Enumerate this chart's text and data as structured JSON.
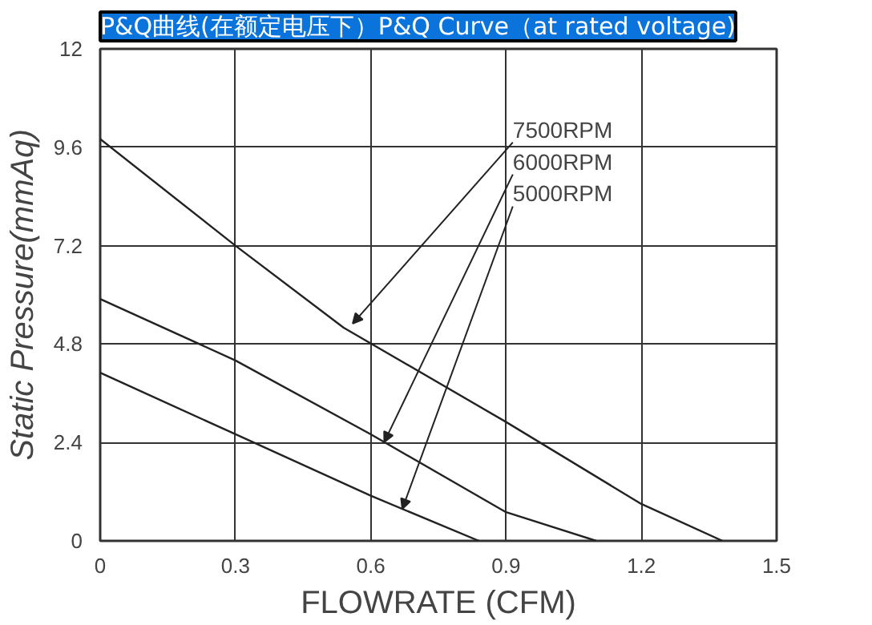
{
  "chart_data": {
    "type": "line",
    "title": "P&Q曲线(在额定电压下）P&Q Curve（at rated voltage)",
    "xlabel": "FLOWRATE (CFM)",
    "ylabel": "Static Pressure(mmAq)",
    "xlim": [
      0,
      1.5
    ],
    "xticks": [
      0,
      0.3,
      0.6,
      0.9,
      1.2,
      1.5
    ],
    "ylim": [
      0,
      12
    ],
    "yticks": [
      0,
      2.4,
      4.8,
      7.2,
      9.6,
      12
    ],
    "grid": true,
    "marker": "none",
    "line_style": "solid",
    "series": [
      {
        "color": "#222222",
        "x": [
          0,
          0.3,
          0.54,
          0.9,
          1.2,
          1.38
        ],
        "values": [
          9.8,
          7.2,
          5.2,
          2.9,
          0.9,
          0
        ]
      },
      {
        "color": "#222222",
        "x": [
          0,
          0.3,
          0.6,
          0.9,
          1.1
        ],
        "values": [
          5.9,
          4.4,
          2.6,
          0.7,
          0
        ]
      },
      {
        "color": "#222222",
        "x": [
          0,
          0.3,
          0.6,
          0.84
        ],
        "values": [
          4.1,
          2.6,
          1.1,
          0
        ]
      }
    ],
    "annotations": [
      {
        "text": "7500RPM",
        "x": 0.56,
        "y": 5.3
      },
      {
        "text": "6000RPM",
        "x": 0.63,
        "y": 2.41
      },
      {
        "text": "5000RPM",
        "x": 0.67,
        "y": 0.78
      }
    ]
  }
}
